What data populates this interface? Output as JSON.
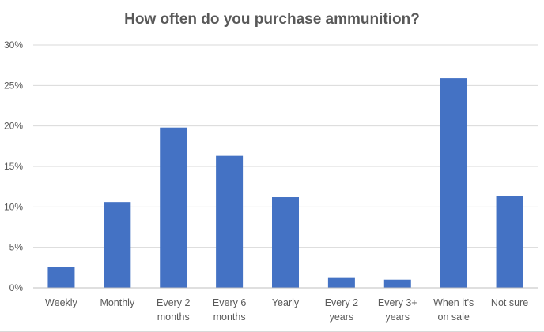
{
  "chart_data": {
    "type": "bar",
    "title": "How often do you purchase ammunition?",
    "xlabel": "",
    "ylabel": "",
    "categories": [
      [
        "Weekly"
      ],
      [
        "Monthly"
      ],
      [
        "Every 2",
        "months"
      ],
      [
        "Every 6",
        "months"
      ],
      [
        "Yearly"
      ],
      [
        "Every 2",
        "years"
      ],
      [
        "Every 3+",
        "years"
      ],
      [
        "When it’s",
        "on sale"
      ],
      [
        "Not sure"
      ]
    ],
    "values": [
      2.6,
      10.6,
      19.8,
      16.3,
      11.2,
      1.3,
      1.0,
      25.9,
      11.3
    ],
    "ylim": [
      0,
      30
    ],
    "y_ticks": [
      0,
      5,
      10,
      15,
      20,
      25,
      30
    ],
    "y_tick_labels": [
      "0%",
      "5%",
      "10%",
      "15%",
      "20%",
      "25%",
      "30%"
    ],
    "grid": true,
    "legend": "none",
    "bar_color": "#4472c4"
  }
}
